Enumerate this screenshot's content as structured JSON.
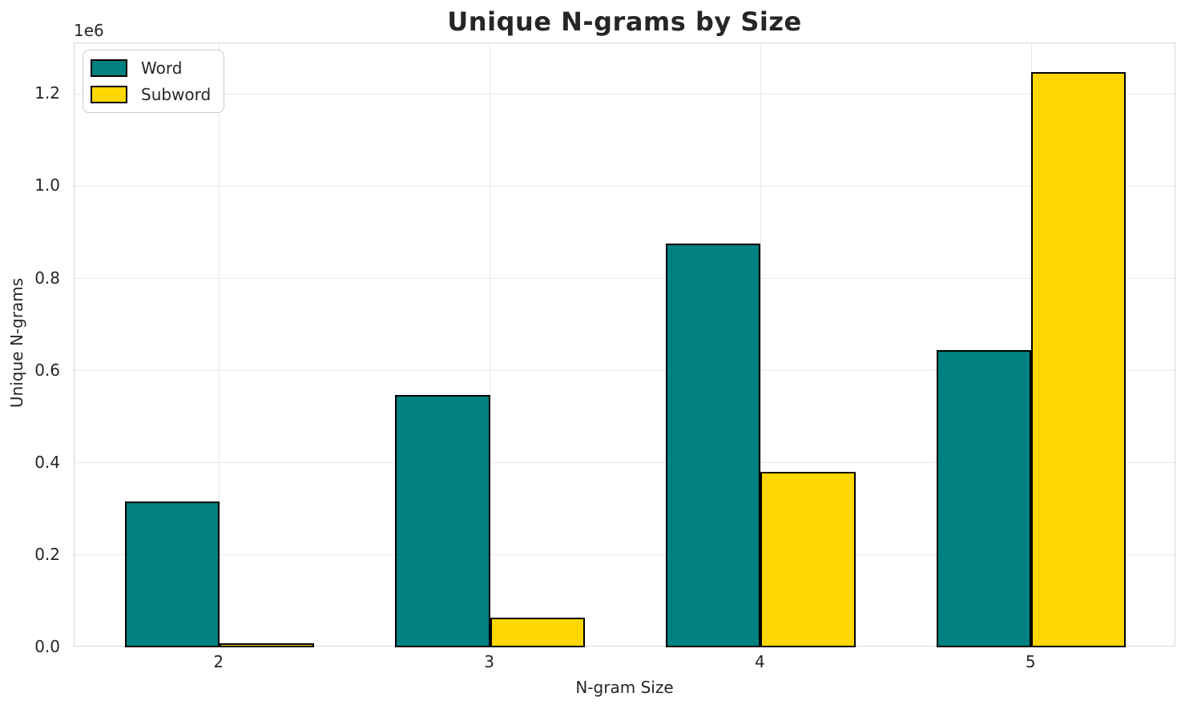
{
  "chart_data": {
    "type": "bar",
    "title": "Unique N-grams by Size",
    "xlabel": "N-gram Size",
    "ylabel": "Unique N-grams",
    "y_offset_label": "1e6",
    "categories": [
      "2",
      "3",
      "4",
      "5"
    ],
    "series": [
      {
        "name": "Word",
        "color": "#008080",
        "values": [
          316000,
          548000,
          876000,
          645000
        ]
      },
      {
        "name": "Subword",
        "color": "#FFD700",
        "values": [
          8700,
          64000,
          381000,
          1247000
        ]
      }
    ],
    "bar_edge_color": "#000000",
    "bar_width": 0.35,
    "xlim": [
      -0.535,
      3.535
    ],
    "ylim": [
      0,
      1310000
    ],
    "yticks": [
      {
        "label": "0.0",
        "value": 0
      },
      {
        "label": "0.2",
        "value": 200000
      },
      {
        "label": "0.4",
        "value": 400000
      },
      {
        "label": "0.6",
        "value": 600000
      },
      {
        "label": "0.8",
        "value": 800000
      },
      {
        "label": "1.0",
        "value": 1000000
      },
      {
        "label": "1.2",
        "value": 1200000
      }
    ],
    "grid": true,
    "grid_color": "#e9e9e9",
    "frame_color": "#d8d8d8",
    "legend_position": "upper left"
  }
}
